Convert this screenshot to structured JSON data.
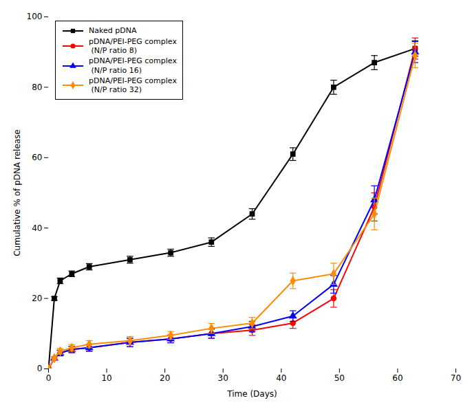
{
  "chart_data": {
    "type": "line",
    "xlabel": "Time (Days)",
    "ylabel": "Cumulative % of pDNA release",
    "xlim": [
      0,
      70
    ],
    "ylim": [
      0,
      100
    ],
    "xticks": [
      0,
      10,
      20,
      30,
      40,
      50,
      60,
      70
    ],
    "yticks": [
      0,
      20,
      40,
      60,
      80,
      100
    ],
    "grid": false,
    "legend": "upper left",
    "x": [
      0,
      1,
      2,
      4,
      7,
      14,
      21,
      28,
      35,
      42,
      49,
      56,
      63
    ],
    "series": [
      {
        "name": "Naked pDNA",
        "color": "#000000",
        "marker": "square",
        "values": [
          0,
          20,
          25,
          27,
          29,
          31,
          33,
          36,
          44,
          61,
          80,
          87,
          91
        ],
        "yerr": [
          0,
          0.5,
          0.8,
          0.8,
          0.9,
          1.0,
          1.0,
          1.2,
          1.5,
          1.8,
          2.0,
          2.0,
          2.2
        ]
      },
      {
        "name": "pDNA/PEI-PEG complex\n (N/P ratio 8)",
        "color": "#ff0000",
        "marker": "circle",
        "values": [
          0,
          3,
          4.5,
          5.5,
          6,
          7.5,
          8.5,
          10,
          11,
          13,
          20,
          46,
          91
        ],
        "yerr": [
          0,
          0.5,
          0.8,
          0.9,
          1.0,
          1.2,
          1.1,
          1.3,
          1.5,
          1.5,
          2.5,
          4.0,
          3.0
        ]
      },
      {
        "name": "pDNA/PEI-PEG complex\n (N/P ratio 16)",
        "color": "#0000ff",
        "marker": "triangle",
        "values": [
          0,
          3,
          4.5,
          5.5,
          6,
          7.5,
          8.5,
          10,
          12,
          15,
          24,
          48,
          90
        ],
        "yerr": [
          0,
          0.5,
          0.8,
          0.9,
          1.0,
          1.2,
          1.1,
          1.3,
          1.5,
          1.5,
          2.5,
          4.0,
          3.0
        ]
      },
      {
        "name": "pDNA/PEI-PEG complex\n (N/P ratio 32)",
        "color": "#ff8c00",
        "marker": "diamond",
        "values": [
          0,
          3,
          5,
          6,
          7,
          8,
          9.5,
          11.5,
          13,
          25,
          27,
          44,
          89
        ],
        "yerr": [
          0,
          0.5,
          0.8,
          0.9,
          1.0,
          1.2,
          1.1,
          1.4,
          1.6,
          2.2,
          3.0,
          4.5,
          3.5
        ]
      }
    ]
  }
}
